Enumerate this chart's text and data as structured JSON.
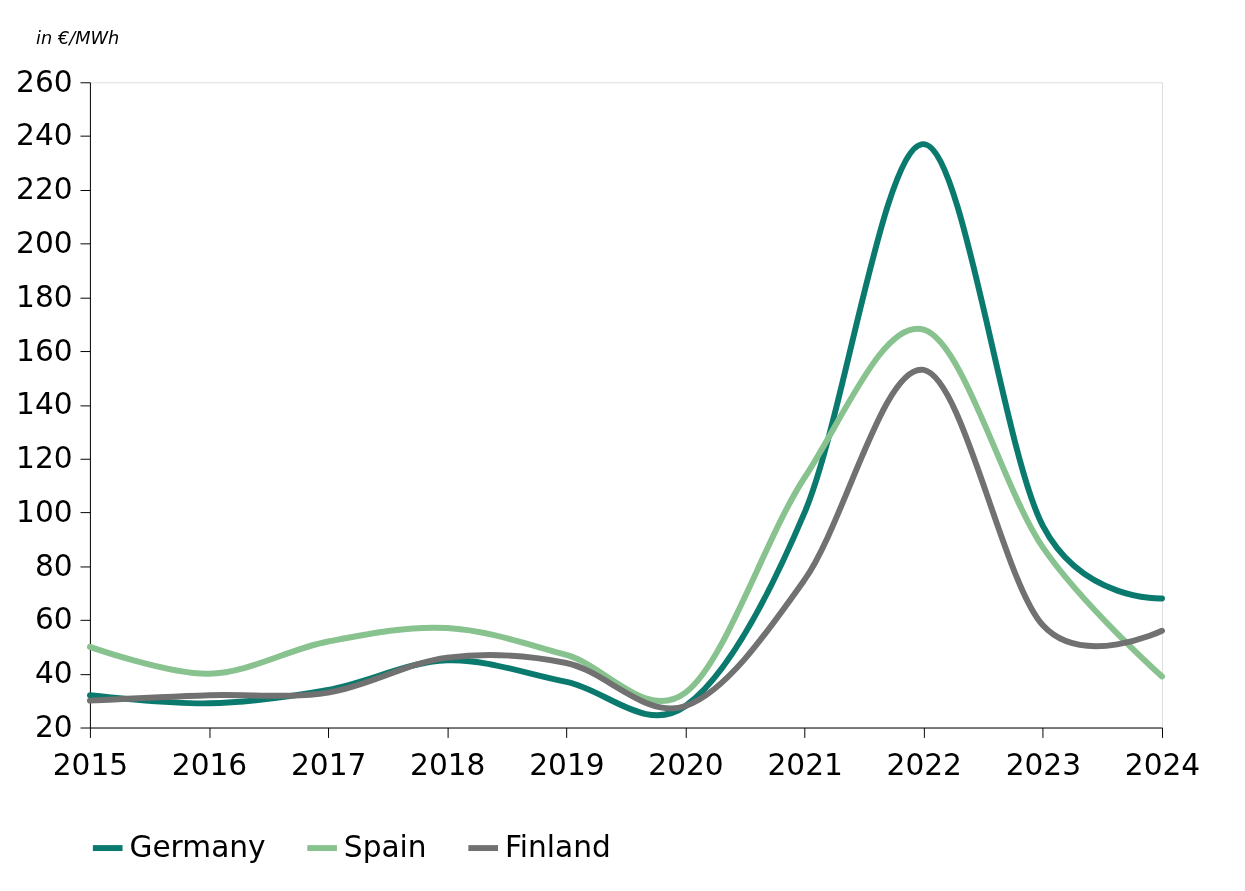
{
  "chart_data": {
    "type": "line",
    "ylabel": "in €/MWh",
    "x": [
      2015,
      2016,
      2017,
      2018,
      2019,
      2020,
      2021,
      2022,
      2023,
      2024
    ],
    "xlim": [
      2015,
      2024
    ],
    "xticks": [
      2015,
      2016,
      2017,
      2018,
      2019,
      2020,
      2021,
      2022,
      2023,
      2024
    ],
    "ylim": [
      20,
      260
    ],
    "yticks": [
      20,
      40,
      60,
      80,
      100,
      120,
      140,
      160,
      180,
      200,
      220,
      240,
      260
    ],
    "grid": false,
    "legend": "bottom",
    "marker": "none",
    "line_style": "solid",
    "series": [
      {
        "name": "Germany",
        "color": "#0b7a6e",
        "values": [
          32,
          29,
          34,
          45,
          37,
          28,
          100,
          237,
          95,
          68
        ]
      },
      {
        "name": "Spain",
        "color": "#88c28f",
        "values": [
          50,
          40,
          52,
          57,
          47,
          33,
          113,
          168,
          87,
          39
        ]
      },
      {
        "name": "Finland",
        "color": "#717171",
        "values": [
          30,
          32,
          33,
          46,
          44,
          28,
          75,
          153,
          58,
          56
        ]
      }
    ]
  }
}
